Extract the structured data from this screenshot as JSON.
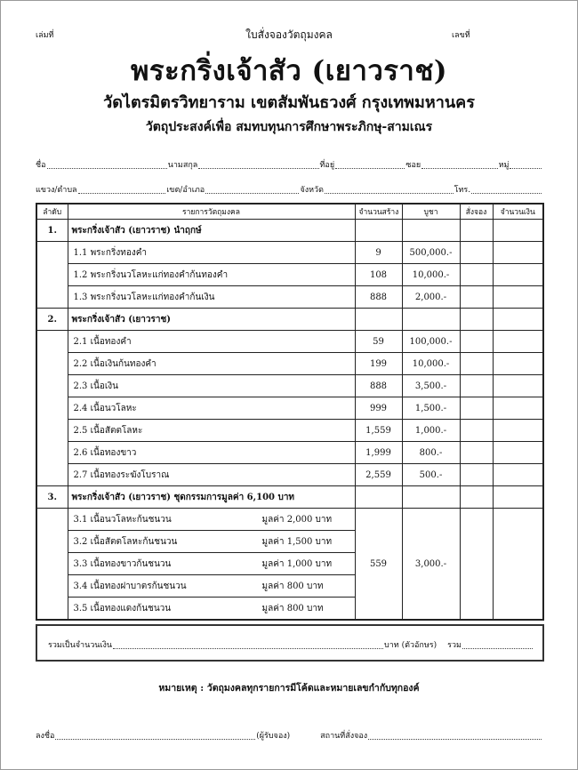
{
  "header": {
    "book_label": "เล่มที่",
    "form_title": "ใบสั่งจองวัตถุมงคล",
    "number_label": "เลขที่"
  },
  "title": "พระกริ่งเจ้าสัว  (เยาวราช)",
  "subtitle": "วัดไตรมิตรวิทยาราม  เขตสัมพันธวงศ์  กรุงเทพมหานคร",
  "purpose": "วัตถุประสงค์เพื่อ  สมทบทุนการศึกษาพระภิกษุ-สามเณร",
  "form": {
    "name": "ชื่อ",
    "surname": "นามสกุล",
    "address": "ที่อยู่",
    "soi": "ซอย",
    "moo": "หมู่",
    "subdistrict": "แขวง/ตำบล",
    "district": "เขต/อำเภอ",
    "province": "จังหวัด",
    "phone": "โทร."
  },
  "table": {
    "headers": [
      "ลำดับ",
      "รายการวัตถุมงคล",
      "จำนวนสร้าง",
      "บูชา",
      "สั่งจอง",
      "จำนวนเงิน"
    ],
    "sections": [
      {
        "no": "1.",
        "title": "พระกริ่งเจ้าสัว (เยาวราช) นำฤกษ์",
        "items": [
          {
            "name": "1.1 พระกริ่งทองคำ",
            "qty": "9",
            "price": "500,000.-"
          },
          {
            "name": "1.2 พระกริ่งนวโลหะแก่ทองคำก้นทองคำ",
            "qty": "108",
            "price": "10,000.-"
          },
          {
            "name": "1.3 พระกริ่งนวโลหะแก่ทองคำก้นเงิน",
            "qty": "888",
            "price": "2,000.-"
          }
        ]
      },
      {
        "no": "2.",
        "title": "พระกริ่งเจ้าสัว (เยาวราช)",
        "items": [
          {
            "name": "2.1 เนื้อทองคำ",
            "qty": "59",
            "price": "100,000.-"
          },
          {
            "name": "2.2 เนื้อเงินก้นทองคำ",
            "qty": "199",
            "price": "10,000.-"
          },
          {
            "name": "2.3 เนื้อเงิน",
            "qty": "888",
            "price": "3,500.-"
          },
          {
            "name": "2.4 เนื้อนวโลหะ",
            "qty": "999",
            "price": "1,500.-"
          },
          {
            "name": "2.5 เนื้อสัตตโลหะ",
            "qty": "1,559",
            "price": "1,000.-"
          },
          {
            "name": "2.6 เนื้อทองขาว",
            "qty": "1,999",
            "price": "800.-"
          },
          {
            "name": "2.7 เนื้อทองระฆังโบราณ",
            "qty": "2,559",
            "price": "500.-"
          }
        ]
      },
      {
        "no": "3.",
        "title": "พระกริ่งเจ้าสัว (เยาวราช) ชุดกรรมการมูลค่า  6,100 บาท",
        "qty": "559",
        "price": "3,000.-",
        "items": [
          {
            "name": "3.1 เนื้อนวโลหะก้นชนวน",
            "value": "มูลค่า  2,000 บาท"
          },
          {
            "name": "3.2 เนื้อสัตตโลหะก้นชนวน",
            "value": "มูลค่า 1,500 บาท"
          },
          {
            "name": "3.3 เนื้อทองขาวก้นชนวน",
            "value": "มูลค่า 1,000 บาท"
          },
          {
            "name": "3.4 เนื้อทองฝาบาตรก้นชนวน",
            "value": "มูลค่า 800 บาท"
          },
          {
            "name": "3.5 เนื้อทองแดงก้นชนวน",
            "value": "มูลค่า 800 บาท"
          }
        ]
      }
    ]
  },
  "total": {
    "label": "รวมเป็นจำนวนเงิน",
    "baht_text": "บาท (ตัวอักษร)",
    "sum": "รวม"
  },
  "note": "หมายเหตุ : วัตถุมงคลทุกรายการมีโค้ดและหมายเลขกำกับทุกองค์",
  "signature": {
    "sign": "ลงชื่อ",
    "orderer": "(ผู้รับจอง)",
    "place": "สถานที่สั่งจอง"
  }
}
